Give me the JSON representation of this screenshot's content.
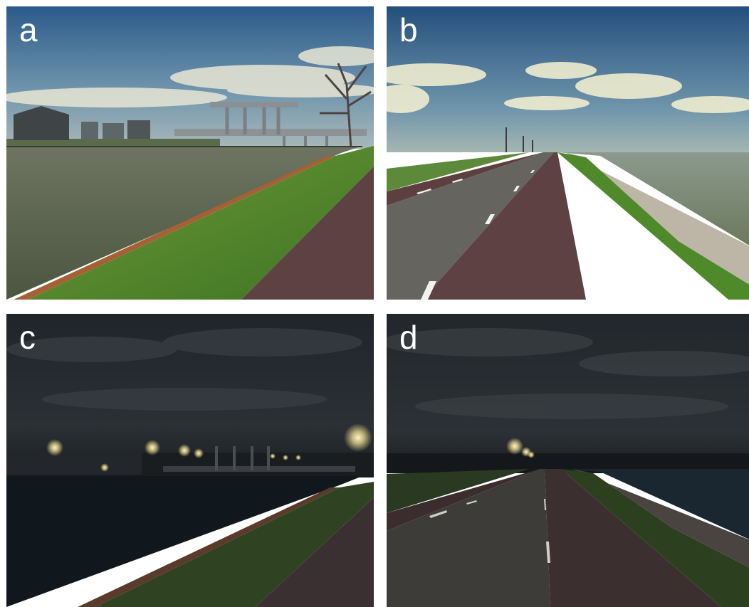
{
  "panels": [
    {
      "id": "a",
      "label": "a",
      "scene": "day-canal-drawbridge"
    },
    {
      "id": "b",
      "label": "b",
      "scene": "day-dike-road"
    },
    {
      "id": "c",
      "label": "c",
      "scene": "night-canal-drawbridge"
    },
    {
      "id": "d",
      "label": "d",
      "scene": "night-dike-road"
    }
  ],
  "colors": {
    "day_sky_top": "#2f5f8e",
    "day_sky_horizon": "#9fb6bd",
    "water_day": "#55604a",
    "grass_day": "#4f8a2a",
    "gravel_red": "#5e3f40",
    "asphalt": "#5a5a55",
    "night_sky": "#1e2226",
    "night_ground": "#12181c",
    "lamp_glow": "#f6e7a8"
  }
}
